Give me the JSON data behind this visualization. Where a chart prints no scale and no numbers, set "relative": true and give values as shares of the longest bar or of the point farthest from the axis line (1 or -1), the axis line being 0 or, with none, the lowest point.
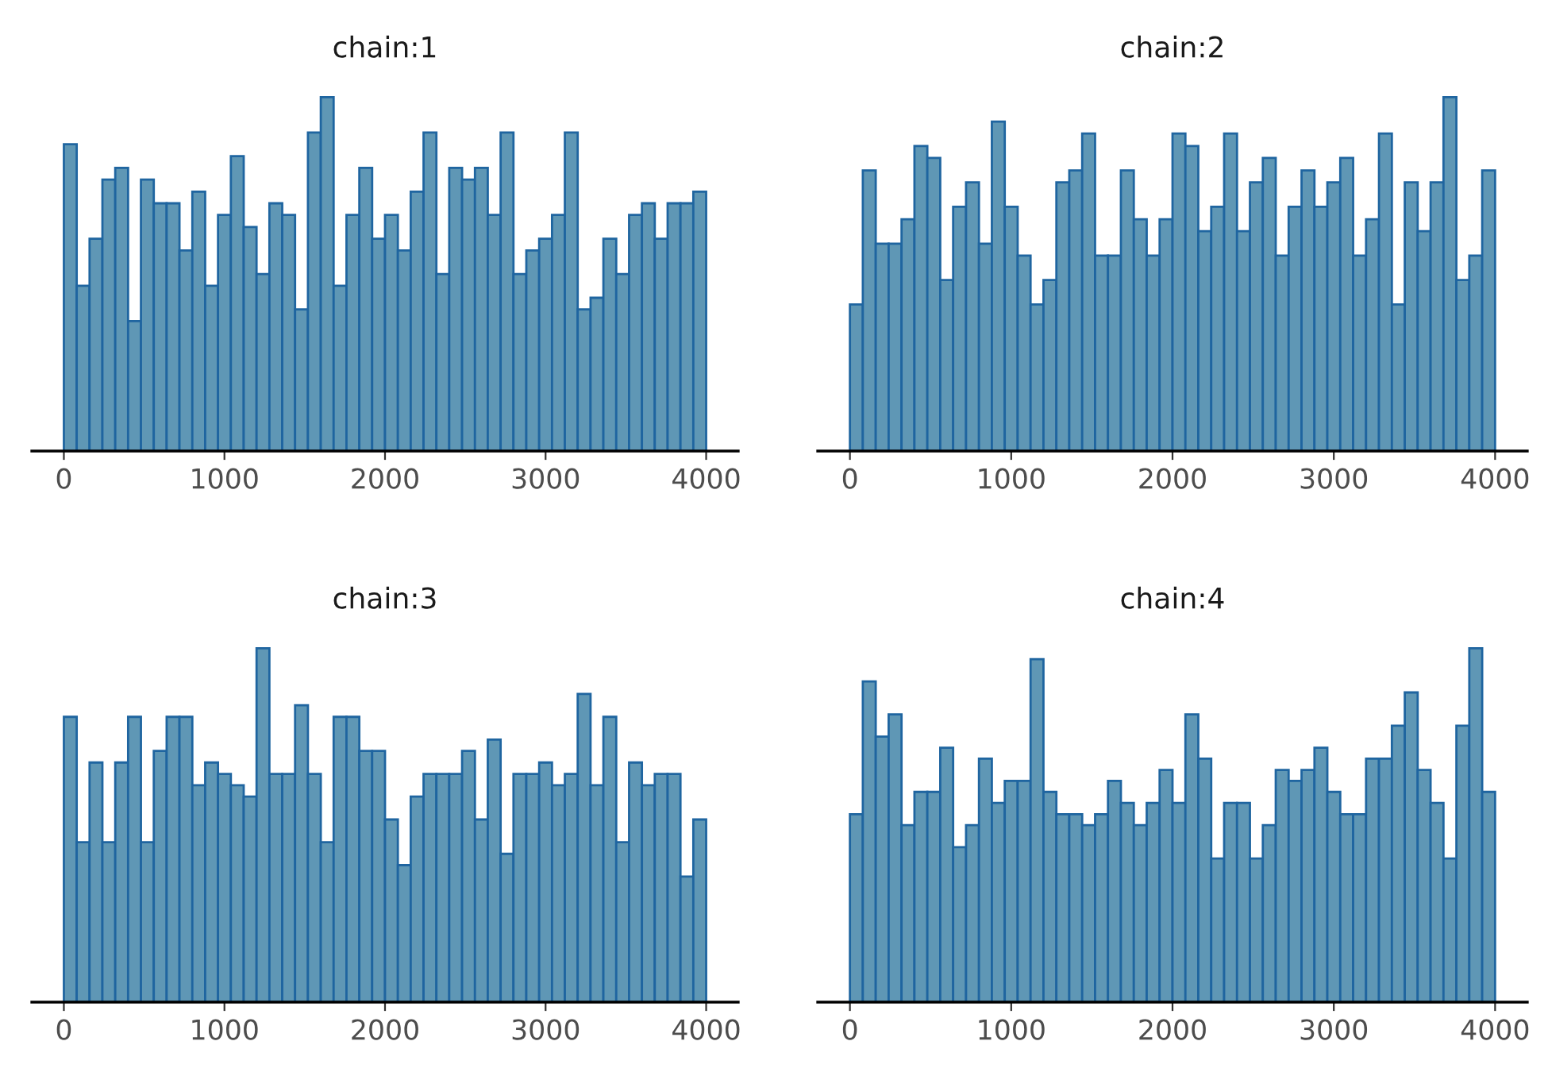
{
  "chart_data": [
    {
      "type": "bar",
      "title": "chain:1",
      "relative": true,
      "color": "#5f97b5",
      "xlim": [
        -200,
        4200
      ],
      "xticks": [
        0,
        1000,
        2000,
        3000,
        4000
      ],
      "tick_labels": "x",
      "x": [
        40,
        120,
        200,
        280,
        360,
        440,
        520,
        600,
        680,
        760,
        840,
        920,
        1000,
        1080,
        1160,
        1240,
        1320,
        1400,
        1480,
        1560,
        1640,
        1720,
        1800,
        1880,
        1960,
        2040,
        2120,
        2200,
        2280,
        2360,
        2440,
        2520,
        2600,
        2680,
        2760,
        2840,
        2920,
        3000,
        3080,
        3160,
        3240,
        3320,
        3400,
        3480,
        3560,
        3640,
        3720,
        3800,
        3880,
        3960
      ],
      "values": [
        0.867,
        0.467,
        0.6,
        0.767,
        0.8,
        0.367,
        0.767,
        0.7,
        0.7,
        0.567,
        0.733,
        0.467,
        0.667,
        0.833,
        0.633,
        0.5,
        0.7,
        0.667,
        0.4,
        0.9,
        1,
        0.467,
        0.667,
        0.8,
        0.6,
        0.667,
        0.567,
        0.733,
        0.9,
        0.5,
        0.8,
        0.767,
        0.8,
        0.667,
        0.9,
        0.5,
        0.567,
        0.6,
        0.667,
        0.9,
        0.4,
        0.433,
        0.6,
        0.5,
        0.667,
        0.7,
        0.6,
        0.7,
        0.7,
        0.733
      ]
    },
    {
      "type": "bar",
      "title": "chain:2",
      "relative": true,
      "color": "#5f97b5",
      "xlim": [
        -200,
        4200
      ],
      "xticks": [
        0,
        1000,
        2000,
        3000,
        4000
      ],
      "tick_labels": "x",
      "x": [
        40,
        120,
        200,
        280,
        360,
        440,
        520,
        600,
        680,
        760,
        840,
        920,
        1000,
        1080,
        1160,
        1240,
        1320,
        1400,
        1480,
        1560,
        1640,
        1720,
        1800,
        1880,
        1960,
        2040,
        2120,
        2200,
        2280,
        2360,
        2440,
        2520,
        2600,
        2680,
        2760,
        2840,
        2920,
        3000,
        3080,
        3160,
        3240,
        3320,
        3400,
        3480,
        3560,
        3640,
        3720,
        3800,
        3880,
        3960
      ],
      "values": [
        0.414,
        0.793,
        0.586,
        0.586,
        0.655,
        0.862,
        0.828,
        0.483,
        0.69,
        0.759,
        0.586,
        0.931,
        0.69,
        0.552,
        0.414,
        0.483,
        0.759,
        0.793,
        0.897,
        0.552,
        0.552,
        0.793,
        0.655,
        0.552,
        0.655,
        0.897,
        0.862,
        0.621,
        0.69,
        0.897,
        0.621,
        0.759,
        0.828,
        0.552,
        0.69,
        0.793,
        0.69,
        0.759,
        0.828,
        0.552,
        0.655,
        0.897,
        0.414,
        0.759,
        0.621,
        0.759,
        1,
        0.483,
        0.552,
        0.793
      ]
    },
    {
      "type": "bar",
      "title": "chain:3",
      "relative": true,
      "color": "#5f97b5",
      "xlim": [
        -200,
        4200
      ],
      "xticks": [
        0,
        1000,
        2000,
        3000,
        4000
      ],
      "tick_labels": "x",
      "x": [
        40,
        120,
        200,
        280,
        360,
        440,
        520,
        600,
        680,
        760,
        840,
        920,
        1000,
        1080,
        1160,
        1240,
        1320,
        1400,
        1480,
        1560,
        1640,
        1720,
        1800,
        1880,
        1960,
        2040,
        2120,
        2200,
        2280,
        2360,
        2440,
        2520,
        2600,
        2680,
        2760,
        2840,
        2920,
        3000,
        3080,
        3160,
        3240,
        3320,
        3400,
        3480,
        3560,
        3640,
        3720,
        3800,
        3880,
        3960
      ],
      "values": [
        0.806,
        0.452,
        0.677,
        0.452,
        0.677,
        0.806,
        0.452,
        0.71,
        0.806,
        0.806,
        0.613,
        0.677,
        0.645,
        0.613,
        0.581,
        1,
        0.645,
        0.645,
        0.839,
        0.645,
        0.452,
        0.806,
        0.806,
        0.71,
        0.71,
        0.516,
        0.387,
        0.581,
        0.645,
        0.645,
        0.645,
        0.71,
        0.516,
        0.742,
        0.419,
        0.645,
        0.645,
        0.677,
        0.613,
        0.645,
        0.871,
        0.613,
        0.806,
        0.452,
        0.677,
        0.613,
        0.645,
        0.645,
        0.355,
        0.516
      ]
    },
    {
      "type": "bar",
      "title": "chain:4",
      "relative": true,
      "color": "#5f97b5",
      "xlim": [
        -200,
        4200
      ],
      "xticks": [
        0,
        1000,
        2000,
        3000,
        4000
      ],
      "tick_labels": "x",
      "x": [
        40,
        120,
        200,
        280,
        360,
        440,
        520,
        600,
        680,
        760,
        840,
        920,
        1000,
        1080,
        1160,
        1240,
        1320,
        1400,
        1480,
        1560,
        1640,
        1720,
        1800,
        1880,
        1960,
        2040,
        2120,
        2200,
        2280,
        2360,
        2440,
        2520,
        2600,
        2680,
        2760,
        2840,
        2920,
        3000,
        3080,
        3160,
        3240,
        3320,
        3400,
        3480,
        3560,
        3640,
        3720,
        3800,
        3880,
        3960
      ],
      "values": [
        0.531,
        0.906,
        0.75,
        0.813,
        0.5,
        0.594,
        0.594,
        0.719,
        0.438,
        0.5,
        0.688,
        0.563,
        0.625,
        0.625,
        0.969,
        0.594,
        0.531,
        0.531,
        0.5,
        0.531,
        0.625,
        0.563,
        0.5,
        0.563,
        0.656,
        0.563,
        0.813,
        0.688,
        0.406,
        0.563,
        0.563,
        0.406,
        0.5,
        0.656,
        0.625,
        0.656,
        0.719,
        0.594,
        0.531,
        0.531,
        0.688,
        0.688,
        0.781,
        0.875,
        0.656,
        0.563,
        0.406,
        0.781,
        1,
        0.594
      ]
    }
  ]
}
